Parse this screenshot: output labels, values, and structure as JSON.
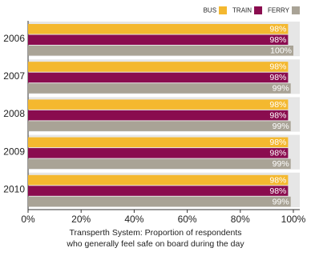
{
  "chart_data": {
    "type": "bar",
    "orientation": "horizontal",
    "title": [
      "Transperth System: Proportion of respondents",
      "who generally feel safe on board during the day"
    ],
    "categories": [
      "2006",
      "2007",
      "2008",
      "2009",
      "2010"
    ],
    "series": [
      {
        "name": "BUS",
        "color": "#f4b82f",
        "values": [
          98,
          98,
          98,
          98,
          98
        ],
        "value_labels": [
          "98%",
          "98%",
          "98%",
          "98%",
          "98%"
        ]
      },
      {
        "name": "TRAIN",
        "color": "#8a0c4f",
        "values": [
          98,
          98,
          98,
          98,
          98
        ],
        "value_labels": [
          "98%",
          "98%",
          "98%",
          "98%",
          "98%"
        ]
      },
      {
        "name": "FERRY",
        "color": "#a9a396",
        "values": [
          100,
          99,
          99,
          99,
          99
        ],
        "value_labels": [
          "100%",
          "99%",
          "99%",
          "99%",
          "99%"
        ]
      }
    ],
    "xlim": [
      0,
      100
    ],
    "xticks": [
      {
        "value": 0,
        "label": "0%"
      },
      {
        "value": 20,
        "label": "20%"
      },
      {
        "value": 40,
        "label": "40%"
      },
      {
        "value": 60,
        "label": "60%"
      },
      {
        "value": 80,
        "label": "80%"
      },
      {
        "value": 100,
        "label": "100%"
      }
    ],
    "legend": "top-right"
  }
}
